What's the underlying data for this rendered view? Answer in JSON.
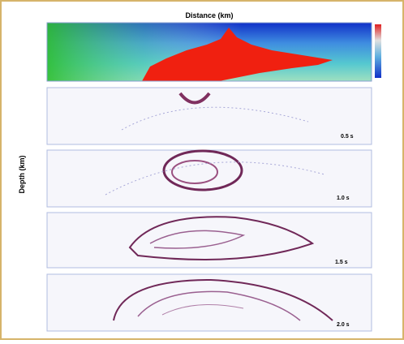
{
  "figure": {
    "x_label": "Distance (km)",
    "y_label": "Depth (km)",
    "panels": [
      {
        "label": "0.5 s"
      },
      {
        "label": "1.0 s"
      },
      {
        "label": "1.5 s"
      },
      {
        "label": "2.0 s"
      }
    ]
  }
}
